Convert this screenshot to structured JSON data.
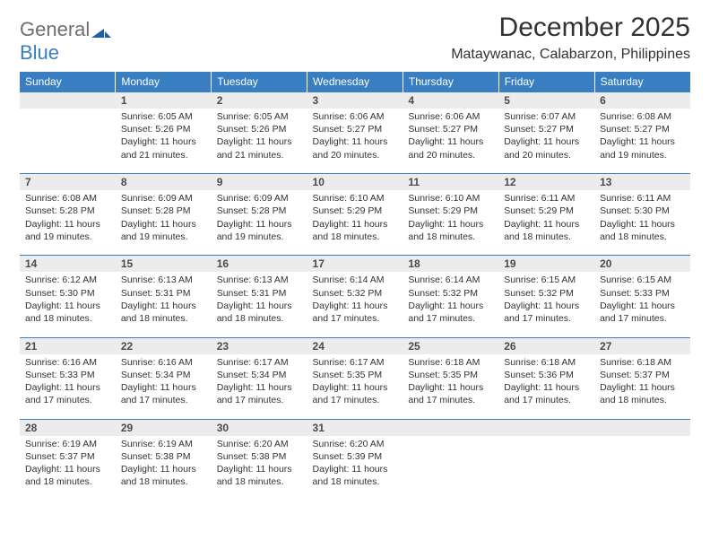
{
  "brand": {
    "part1": "General",
    "part2": "Blue",
    "logo_color": "#1f5fa8"
  },
  "title": "December 2025",
  "location": "Mataywanac, Calabarzon, Philippines",
  "colors": {
    "header_bg": "#3a7ec2",
    "daynum_bg": "#ececec",
    "rule": "#3a7ec2",
    "text": "#323232"
  },
  "weekdays": [
    "Sunday",
    "Monday",
    "Tuesday",
    "Wednesday",
    "Thursday",
    "Friday",
    "Saturday"
  ],
  "weeks": [
    [
      {
        "num": "",
        "sunrise": "",
        "sunset": "",
        "daylight": ""
      },
      {
        "num": "1",
        "sunrise": "Sunrise: 6:05 AM",
        "sunset": "Sunset: 5:26 PM",
        "daylight": "Daylight: 11 hours and 21 minutes."
      },
      {
        "num": "2",
        "sunrise": "Sunrise: 6:05 AM",
        "sunset": "Sunset: 5:26 PM",
        "daylight": "Daylight: 11 hours and 21 minutes."
      },
      {
        "num": "3",
        "sunrise": "Sunrise: 6:06 AM",
        "sunset": "Sunset: 5:27 PM",
        "daylight": "Daylight: 11 hours and 20 minutes."
      },
      {
        "num": "4",
        "sunrise": "Sunrise: 6:06 AM",
        "sunset": "Sunset: 5:27 PM",
        "daylight": "Daylight: 11 hours and 20 minutes."
      },
      {
        "num": "5",
        "sunrise": "Sunrise: 6:07 AM",
        "sunset": "Sunset: 5:27 PM",
        "daylight": "Daylight: 11 hours and 20 minutes."
      },
      {
        "num": "6",
        "sunrise": "Sunrise: 6:08 AM",
        "sunset": "Sunset: 5:27 PM",
        "daylight": "Daylight: 11 hours and 19 minutes."
      }
    ],
    [
      {
        "num": "7",
        "sunrise": "Sunrise: 6:08 AM",
        "sunset": "Sunset: 5:28 PM",
        "daylight": "Daylight: 11 hours and 19 minutes."
      },
      {
        "num": "8",
        "sunrise": "Sunrise: 6:09 AM",
        "sunset": "Sunset: 5:28 PM",
        "daylight": "Daylight: 11 hours and 19 minutes."
      },
      {
        "num": "9",
        "sunrise": "Sunrise: 6:09 AM",
        "sunset": "Sunset: 5:28 PM",
        "daylight": "Daylight: 11 hours and 19 minutes."
      },
      {
        "num": "10",
        "sunrise": "Sunrise: 6:10 AM",
        "sunset": "Sunset: 5:29 PM",
        "daylight": "Daylight: 11 hours and 18 minutes."
      },
      {
        "num": "11",
        "sunrise": "Sunrise: 6:10 AM",
        "sunset": "Sunset: 5:29 PM",
        "daylight": "Daylight: 11 hours and 18 minutes."
      },
      {
        "num": "12",
        "sunrise": "Sunrise: 6:11 AM",
        "sunset": "Sunset: 5:29 PM",
        "daylight": "Daylight: 11 hours and 18 minutes."
      },
      {
        "num": "13",
        "sunrise": "Sunrise: 6:11 AM",
        "sunset": "Sunset: 5:30 PM",
        "daylight": "Daylight: 11 hours and 18 minutes."
      }
    ],
    [
      {
        "num": "14",
        "sunrise": "Sunrise: 6:12 AM",
        "sunset": "Sunset: 5:30 PM",
        "daylight": "Daylight: 11 hours and 18 minutes."
      },
      {
        "num": "15",
        "sunrise": "Sunrise: 6:13 AM",
        "sunset": "Sunset: 5:31 PM",
        "daylight": "Daylight: 11 hours and 18 minutes."
      },
      {
        "num": "16",
        "sunrise": "Sunrise: 6:13 AM",
        "sunset": "Sunset: 5:31 PM",
        "daylight": "Daylight: 11 hours and 18 minutes."
      },
      {
        "num": "17",
        "sunrise": "Sunrise: 6:14 AM",
        "sunset": "Sunset: 5:32 PM",
        "daylight": "Daylight: 11 hours and 17 minutes."
      },
      {
        "num": "18",
        "sunrise": "Sunrise: 6:14 AM",
        "sunset": "Sunset: 5:32 PM",
        "daylight": "Daylight: 11 hours and 17 minutes."
      },
      {
        "num": "19",
        "sunrise": "Sunrise: 6:15 AM",
        "sunset": "Sunset: 5:32 PM",
        "daylight": "Daylight: 11 hours and 17 minutes."
      },
      {
        "num": "20",
        "sunrise": "Sunrise: 6:15 AM",
        "sunset": "Sunset: 5:33 PM",
        "daylight": "Daylight: 11 hours and 17 minutes."
      }
    ],
    [
      {
        "num": "21",
        "sunrise": "Sunrise: 6:16 AM",
        "sunset": "Sunset: 5:33 PM",
        "daylight": "Daylight: 11 hours and 17 minutes."
      },
      {
        "num": "22",
        "sunrise": "Sunrise: 6:16 AM",
        "sunset": "Sunset: 5:34 PM",
        "daylight": "Daylight: 11 hours and 17 minutes."
      },
      {
        "num": "23",
        "sunrise": "Sunrise: 6:17 AM",
        "sunset": "Sunset: 5:34 PM",
        "daylight": "Daylight: 11 hours and 17 minutes."
      },
      {
        "num": "24",
        "sunrise": "Sunrise: 6:17 AM",
        "sunset": "Sunset: 5:35 PM",
        "daylight": "Daylight: 11 hours and 17 minutes."
      },
      {
        "num": "25",
        "sunrise": "Sunrise: 6:18 AM",
        "sunset": "Sunset: 5:35 PM",
        "daylight": "Daylight: 11 hours and 17 minutes."
      },
      {
        "num": "26",
        "sunrise": "Sunrise: 6:18 AM",
        "sunset": "Sunset: 5:36 PM",
        "daylight": "Daylight: 11 hours and 17 minutes."
      },
      {
        "num": "27",
        "sunrise": "Sunrise: 6:18 AM",
        "sunset": "Sunset: 5:37 PM",
        "daylight": "Daylight: 11 hours and 18 minutes."
      }
    ],
    [
      {
        "num": "28",
        "sunrise": "Sunrise: 6:19 AM",
        "sunset": "Sunset: 5:37 PM",
        "daylight": "Daylight: 11 hours and 18 minutes."
      },
      {
        "num": "29",
        "sunrise": "Sunrise: 6:19 AM",
        "sunset": "Sunset: 5:38 PM",
        "daylight": "Daylight: 11 hours and 18 minutes."
      },
      {
        "num": "30",
        "sunrise": "Sunrise: 6:20 AM",
        "sunset": "Sunset: 5:38 PM",
        "daylight": "Daylight: 11 hours and 18 minutes."
      },
      {
        "num": "31",
        "sunrise": "Sunrise: 6:20 AM",
        "sunset": "Sunset: 5:39 PM",
        "daylight": "Daylight: 11 hours and 18 minutes."
      },
      {
        "num": "",
        "sunrise": "",
        "sunset": "",
        "daylight": ""
      },
      {
        "num": "",
        "sunrise": "",
        "sunset": "",
        "daylight": ""
      },
      {
        "num": "",
        "sunrise": "",
        "sunset": "",
        "daylight": ""
      }
    ]
  ]
}
